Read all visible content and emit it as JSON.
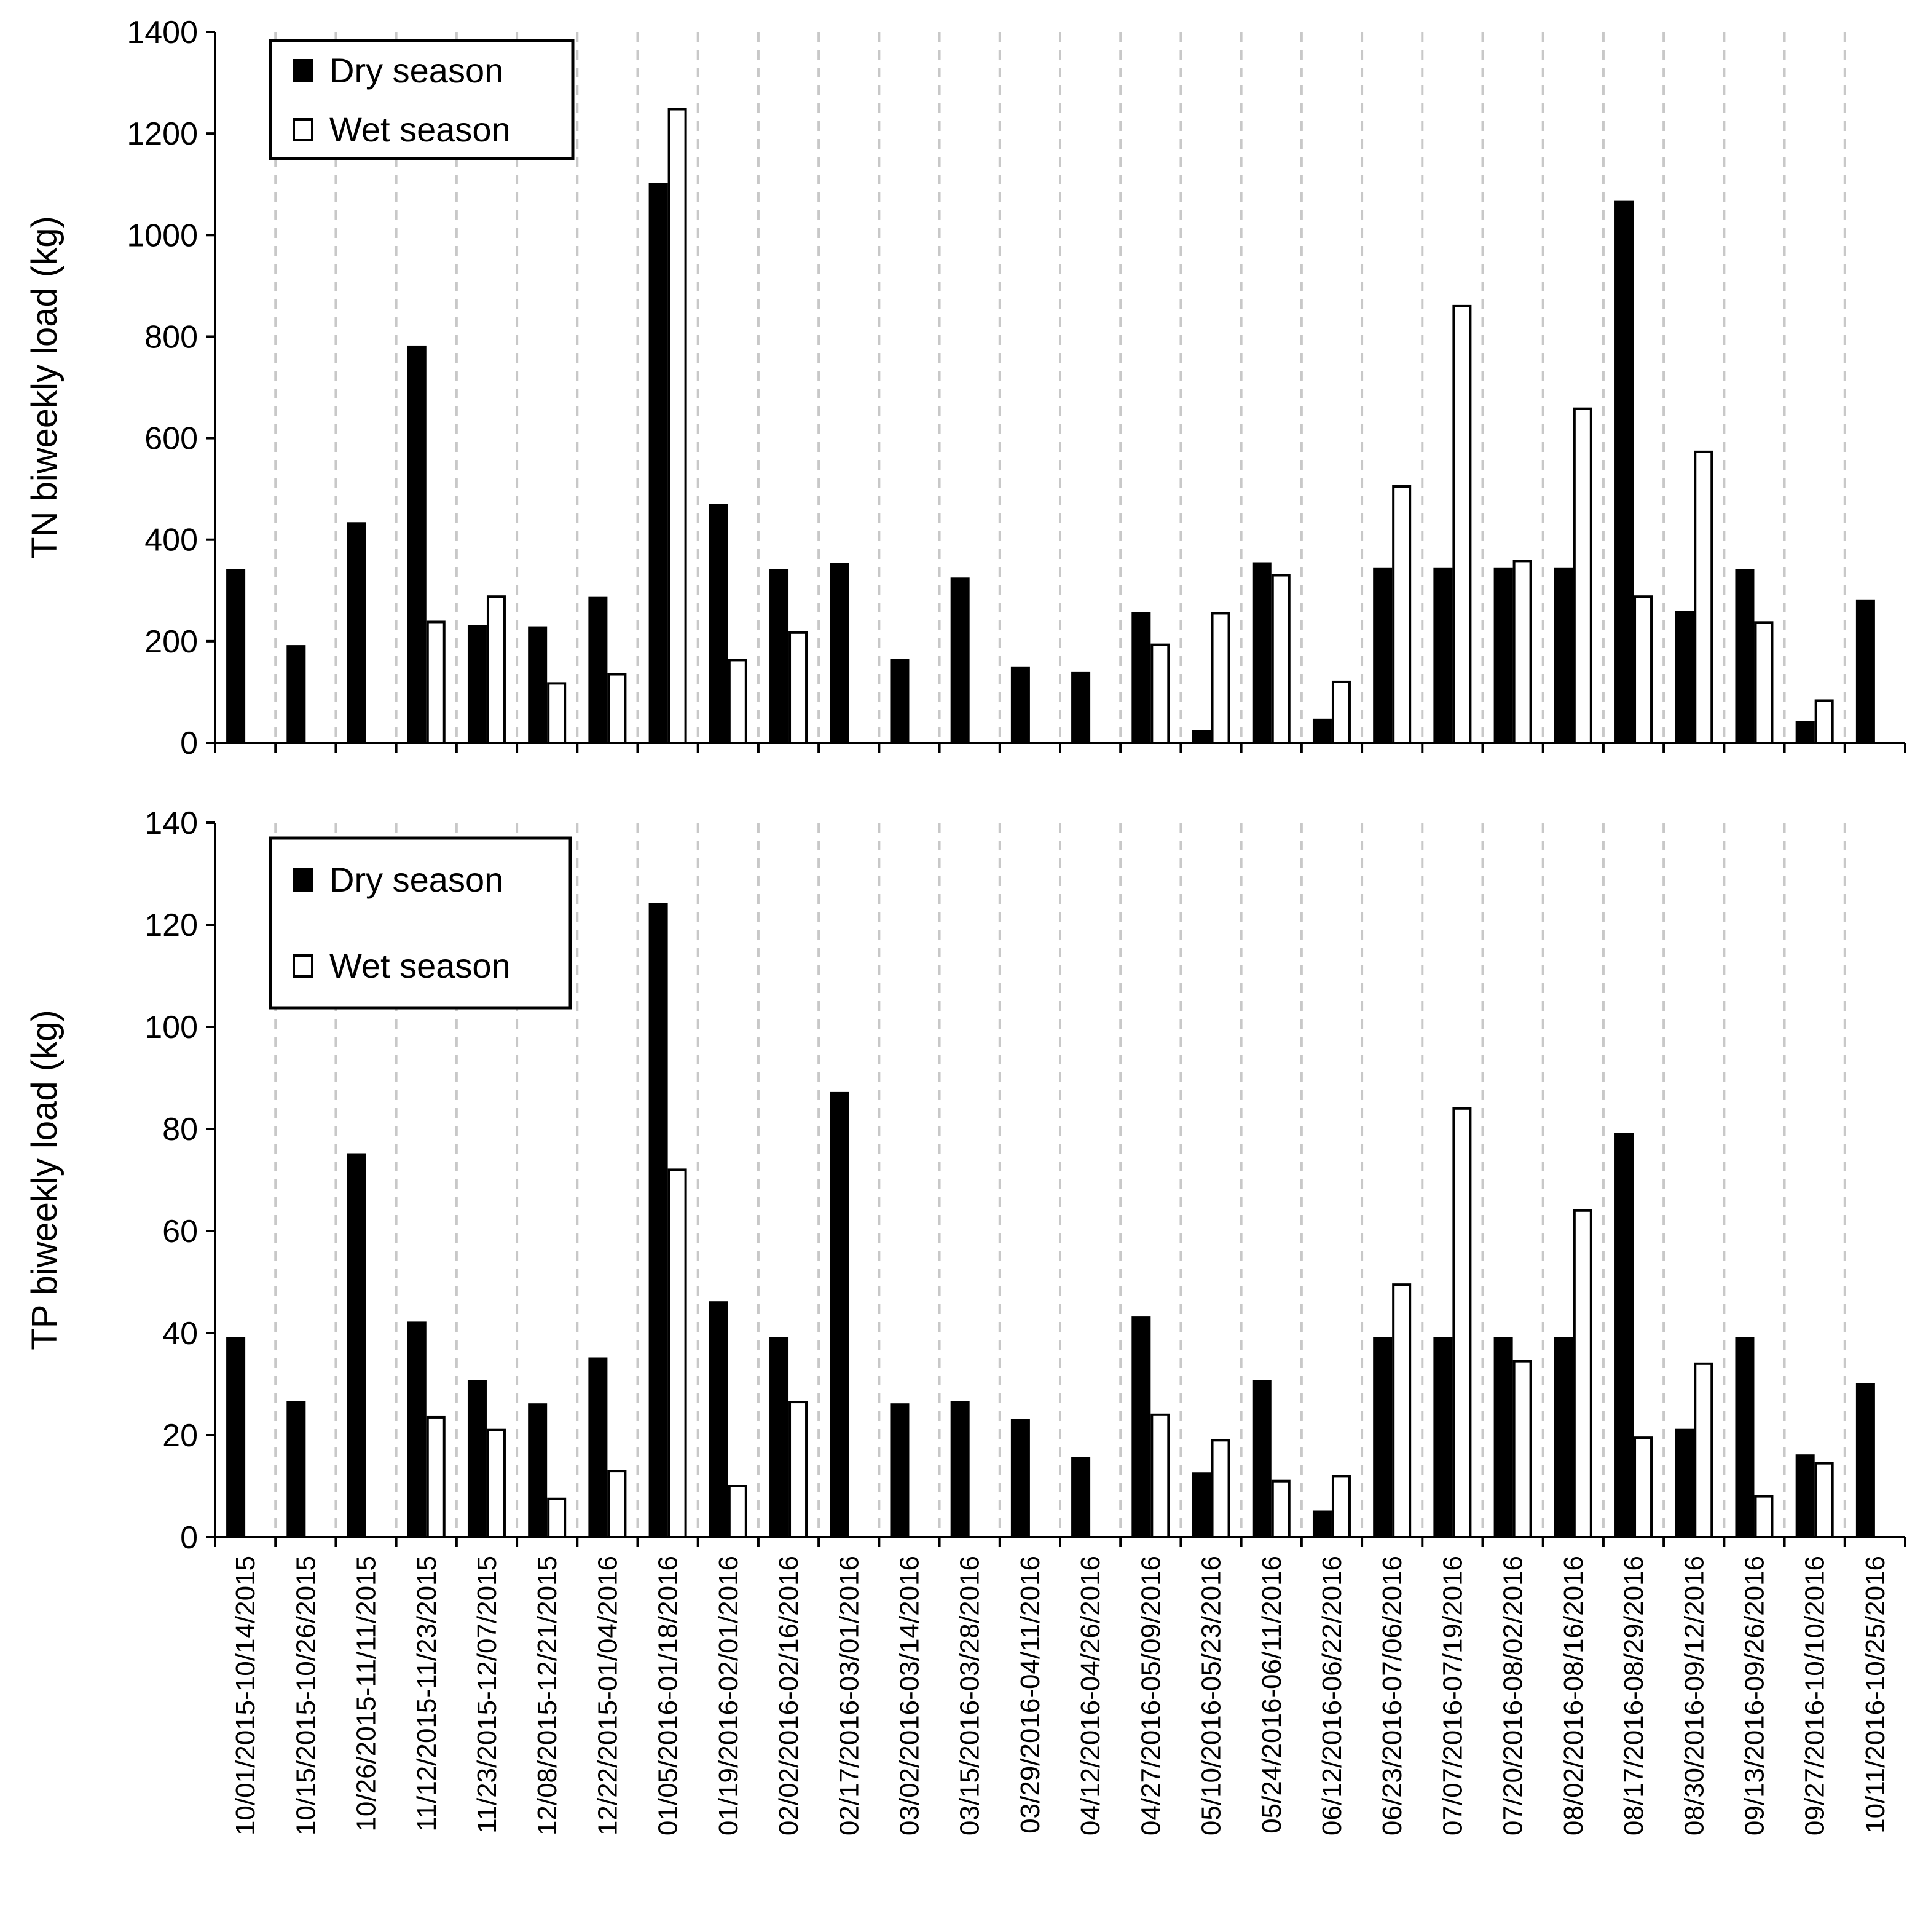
{
  "chart_data": [
    {
      "type": "bar",
      "ylabel": "TN biweekly load (kg)",
      "ylim": [
        0,
        1400
      ],
      "yticks": [
        0,
        200,
        400,
        600,
        800,
        1000,
        1200,
        1400
      ],
      "categories": [
        "10/01/2015-10/14/2015",
        "10/15/2015-10/26/2015",
        "10/26/2015-11/11/2015",
        "11/12/2015-11/23/2015",
        "11/23/2015-12/07/2015",
        "12/08/2015-12/21/2015",
        "12/22/2015-01/04/2016",
        "01/05/2016-01/18/2016",
        "01/19/2016-02/01/2016",
        "02/02/2016-02/16/2016",
        "02/17/2016-03/01/2016",
        "03/02/2016-03/14/2016",
        "03/15/2016-03/28/2016",
        "03/29/2016-04/11/2016",
        "04/12/2016-04/26/2016",
        "04/27/2016-05/09/2016",
        "05/10/2016-05/23/2016",
        "05/24/2016-06/11/2016",
        "06/12/2016-06/22/2016",
        "06/23/2016-07/06/2016",
        "07/07/2016-07/19/2016",
        "07/20/2016-08/02/2016",
        "08/02/2016-08/16/2016",
        "08/17/2016-08/29/2016",
        "08/30/2016-09/12/2016",
        "09/13/2016-09/26/2016",
        "09/27/2016-10/10/2016",
        "10/11/2016-10/25/2016"
      ],
      "series": [
        {
          "name": "Dry season",
          "fill": "#000000",
          "values": [
            340,
            190,
            432,
            780,
            230,
            227,
            285,
            1100,
            468,
            340,
            352,
            163,
            323,
            148,
            137,
            255,
            22,
            353,
            45,
            343,
            343,
            343,
            343,
            1065,
            257,
            340,
            40,
            280
          ]
        },
        {
          "name": "Wet season",
          "fill": "#ffffff",
          "values": [
            null,
            null,
            null,
            238,
            288,
            117,
            135,
            1248,
            163,
            217,
            null,
            null,
            null,
            null,
            null,
            193,
            255,
            330,
            120,
            505,
            860,
            358,
            658,
            288,
            573,
            237,
            83,
            null
          ]
        }
      ],
      "grid": "vertical dashed between categories",
      "legend": "top-left"
    },
    {
      "type": "bar",
      "ylabel": "TP biweekly load (kg)",
      "ylim": [
        0,
        140
      ],
      "yticks": [
        0,
        20,
        40,
        60,
        80,
        100,
        120,
        140
      ],
      "categories": [
        "10/01/2015-10/14/2015",
        "10/15/2015-10/26/2015",
        "10/26/2015-11/11/2015",
        "11/12/2015-11/23/2015",
        "11/23/2015-12/07/2015",
        "12/08/2015-12/21/2015",
        "12/22/2015-01/04/2016",
        "01/05/2016-01/18/2016",
        "01/19/2016-02/01/2016",
        "02/02/2016-02/16/2016",
        "02/17/2016-03/01/2016",
        "03/02/2016-03/14/2016",
        "03/15/2016-03/28/2016",
        "03/29/2016-04/11/2016",
        "04/12/2016-04/26/2016",
        "04/27/2016-05/09/2016",
        "05/10/2016-05/23/2016",
        "05/24/2016-06/11/2016",
        "06/12/2016-06/22/2016",
        "06/23/2016-07/06/2016",
        "07/07/2016-07/19/2016",
        "07/20/2016-08/02/2016",
        "08/02/2016-08/16/2016",
        "08/17/2016-08/29/2016",
        "08/30/2016-09/12/2016",
        "09/13/2016-09/26/2016",
        "09/27/2016-10/10/2016",
        "10/11/2016-10/25/2016"
      ],
      "series": [
        {
          "name": "Dry season",
          "fill": "#000000",
          "values": [
            39,
            26.5,
            75,
            42,
            30.5,
            26,
            35,
            124,
            46,
            39,
            87,
            26,
            26.5,
            23,
            15.5,
            43,
            12.5,
            30.5,
            5,
            39,
            39,
            39,
            39,
            79,
            21,
            39,
            16,
            30
          ]
        },
        {
          "name": "Wet season",
          "fill": "#ffffff",
          "values": [
            null,
            null,
            null,
            23.5,
            21,
            7.5,
            13,
            72,
            10,
            26.5,
            null,
            null,
            null,
            null,
            null,
            24,
            19,
            11,
            12,
            49.5,
            84,
            34.5,
            64,
            19.5,
            34,
            8,
            14.5,
            null
          ]
        }
      ],
      "grid": "vertical dashed between categories",
      "legend": "top-left"
    }
  ]
}
